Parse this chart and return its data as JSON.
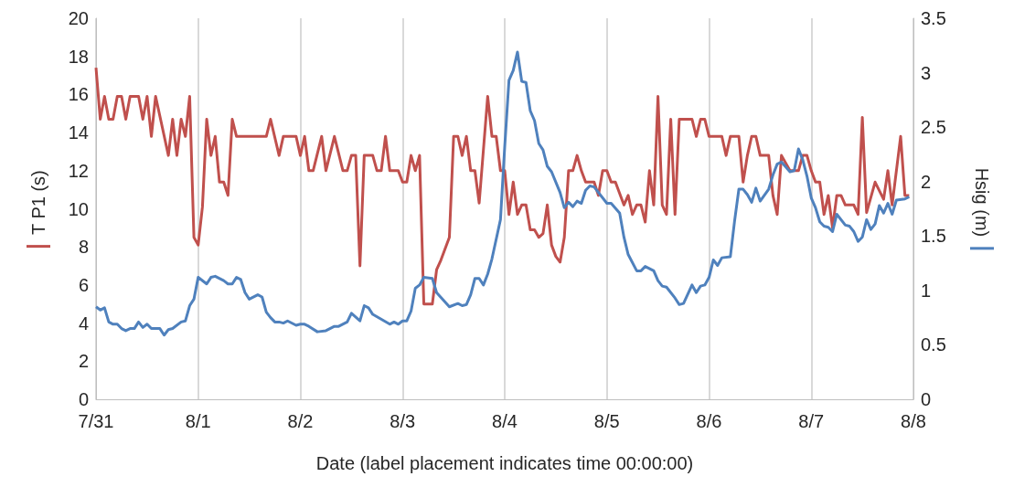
{
  "chart_data": {
    "type": "line",
    "xlabel": "Date (label placement indicates time 00:00:00)",
    "ylabel": "T P1 (s)",
    "y2label": "Hsig (m)",
    "xlim": [
      "--07-31",
      "--08-08"
    ],
    "xticks": [
      {
        "value": "--07-31",
        "label": "7/31"
      },
      {
        "value": "--08-01",
        "label": "8/1"
      },
      {
        "value": "--08-02",
        "label": "8/2"
      },
      {
        "value": "--08-03",
        "label": "8/3"
      },
      {
        "value": "--08-04",
        "label": "8/4"
      },
      {
        "value": "--08-05",
        "label": "8/5"
      },
      {
        "value": "--08-06",
        "label": "8/6"
      },
      {
        "value": "--08-07",
        "label": "8/7"
      },
      {
        "value": "--08-08",
        "label": "8/8"
      }
    ],
    "ylim": [
      0,
      20
    ],
    "yticks": [
      0,
      2,
      4,
      6,
      8,
      10,
      12,
      14,
      16,
      18,
      20
    ],
    "y2lim": [
      0,
      3.5
    ],
    "y2ticks": [
      0,
      0.5,
      1,
      1.5,
      2,
      2.5,
      3,
      3.5
    ],
    "grid": "x",
    "marker": "none",
    "line_style": "solid",
    "series": [
      {
        "color": "#c0504d",
        "x": [
          "--07-31T00:00",
          "--07-31T01:00",
          "--07-31T02:00",
          "--07-31T03:00",
          "--07-31T04:00",
          "--07-31T05:00",
          "--07-31T06:00",
          "--07-31T07:00",
          "--07-31T08:00",
          "--07-31T10:00",
          "--07-31T11:00",
          "--07-31T12:00",
          "--07-31T13:00",
          "--07-31T14:00",
          "--07-31T17:00",
          "--07-31T18:00",
          "--07-31T19:00",
          "--07-31T20:00",
          "--07-31T21:00",
          "--07-31T22:00",
          "--07-31T23:00",
          "--08-01T00:00",
          "--08-01T01:00",
          "--08-01T02:00",
          "--08-01T03:00",
          "--08-01T04:00",
          "--08-01T05:00",
          "--08-01T06:00",
          "--08-01T07:00",
          "--08-01T08:00",
          "--08-01T09:00",
          "--08-01T16:00",
          "--08-01T17:00",
          "--08-01T19:00",
          "--08-01T20:00",
          "--08-01T23:00",
          "--08-02T00:00",
          "--08-02T01:00",
          "--08-02T02:00",
          "--08-02T03:00",
          "--08-02T05:00",
          "--08-02T06:00",
          "--08-02T08:00",
          "--08-02T10:00",
          "--08-02T11:00",
          "--08-02T12:00",
          "--08-02T13:00",
          "--08-02T14:00",
          "--08-02T15:00",
          "--08-02T17:00",
          "--08-02T18:00",
          "--08-02T19:00",
          "--08-02T20:00",
          "--08-02T21:00",
          "--08-02T23:00",
          "--08-03T00:00",
          "--08-03T01:00",
          "--08-03T02:00",
          "--08-03T03:00",
          "--08-03T04:00",
          "--08-03T05:00",
          "--08-03T07:00",
          "--08-03T08:00",
          "--08-03T09:00",
          "--08-03T11:00",
          "--08-03T12:00",
          "--08-03T13:00",
          "--08-03T14:00",
          "--08-03T15:00",
          "--08-03T16:00",
          "--08-03T17:00",
          "--08-03T18:00",
          "--08-03T20:00",
          "--08-03T21:00",
          "--08-03T22:00",
          "--08-03T23:00",
          "--08-04T00:00",
          "--08-04T01:00",
          "--08-04T02:00",
          "--08-04T03:00",
          "--08-04T04:00",
          "--08-04T05:00",
          "--08-04T06:00",
          "--08-04T07:00",
          "--08-04T08:00",
          "--08-04T09:00",
          "--08-04T10:00",
          "--08-04T11:00",
          "--08-04T12:00",
          "--08-04T13:00",
          "--08-04T14:00",
          "--08-04T15:00",
          "--08-04T16:00",
          "--08-04T17:00",
          "--08-04T18:00",
          "--08-04T19:00",
          "--08-04T21:00",
          "--08-04T22:00",
          "--08-04T23:00",
          "--08-05T00:00",
          "--08-05T01:00",
          "--08-05T02:00",
          "--08-05T04:00",
          "--08-05T05:00",
          "--08-05T06:00",
          "--08-05T07:00",
          "--08-05T08:00",
          "--08-05T09:00",
          "--08-05T10:00",
          "--08-05T11:00",
          "--08-05T12:00",
          "--08-05T13:00",
          "--08-05T14:00",
          "--08-05T15:00",
          "--08-05T16:00",
          "--08-05T17:00",
          "--08-05T20:00",
          "--08-05T21:00",
          "--08-05T22:00",
          "--08-05T23:00",
          "--08-06T00:00",
          "--08-06T03:00",
          "--08-06T04:00",
          "--08-06T05:00",
          "--08-06T07:00",
          "--08-06T08:00",
          "--08-06T09:00",
          "--08-06T10:00",
          "--08-06T11:00",
          "--08-06T12:00",
          "--08-06T14:00",
          "--08-06T15:00",
          "--08-06T16:00",
          "--08-06T17:00",
          "--08-06T19:00",
          "--08-06T21:00",
          "--08-06T22:00",
          "--08-06T23:00",
          "--08-07T00:00",
          "--08-07T01:00",
          "--08-07T02:00",
          "--08-07T03:00",
          "--08-07T04:00",
          "--08-07T05:00",
          "--08-07T06:00",
          "--08-07T07:00",
          "--08-07T08:00",
          "--08-07T10:00",
          "--08-07T11:00",
          "--08-07T12:00",
          "--08-07T13:00",
          "--08-07T15:00",
          "--08-07T17:00",
          "--08-07T18:00",
          "--08-07T19:00",
          "--08-07T21:00",
          "--08-07T22:00",
          "--08-07T23:00"
        ],
        "values": [
          17.4,
          14.7,
          15.9,
          14.7,
          14.7,
          15.9,
          15.9,
          14.7,
          15.9,
          15.9,
          14.7,
          15.9,
          13.8,
          15.9,
          12.8,
          14.7,
          12.8,
          14.7,
          13.8,
          15.9,
          8.5,
          8.1,
          10.1,
          14.7,
          12.8,
          13.8,
          11.4,
          11.4,
          10.7,
          14.7,
          13.8,
          13.8,
          14.7,
          12.8,
          13.8,
          13.8,
          12.8,
          13.8,
          12,
          12,
          13.8,
          12,
          13.8,
          12,
          12,
          12.8,
          12.8,
          7,
          12.8,
          12.8,
          12,
          12,
          13.8,
          12,
          12,
          11.4,
          11.4,
          12.8,
          12,
          12.8,
          5,
          5,
          6.8,
          7.3,
          8.5,
          13.8,
          13.8,
          12.8,
          13.8,
          12,
          12,
          10.3,
          15.9,
          13.8,
          13.8,
          12,
          12,
          9.7,
          11.4,
          9.7,
          10.2,
          10.2,
          8.9,
          8.9,
          8.5,
          8.7,
          10.2,
          8.1,
          7.5,
          7.2,
          8.5,
          12,
          12,
          12.8,
          12,
          11.4,
          11.4,
          10.7,
          12,
          12,
          11.4,
          11.4,
          10.2,
          10.7,
          9.7,
          10.2,
          10.2,
          9.3,
          12,
          10.2,
          15.9,
          10.2,
          9.7,
          14.7,
          9.7,
          14.7,
          14.7,
          13.8,
          14.7,
          14.7,
          13.8,
          13.8,
          12.8,
          13.8,
          13.8,
          11.4,
          12.8,
          13.8,
          13.8,
          12.8,
          12.8,
          10.7,
          9.7,
          12.8,
          12,
          12,
          12.8,
          12.8,
          12,
          11.4,
          11.4,
          9.7,
          10.7,
          9,
          10.7,
          10.7,
          10.2,
          10.2,
          9.7,
          14.8,
          9.8,
          11.4,
          10.5,
          12,
          10.2,
          13.8,
          10.7,
          10.7
        ]
      },
      {
        "color": "#4f81bd",
        "axis": "y2",
        "x": [
          "--07-31T00:00",
          "--07-31T01:00",
          "--07-31T02:00",
          "--07-31T03:00",
          "--07-31T04:00",
          "--07-31T05:00",
          "--07-31T06:00",
          "--07-31T07:00",
          "--07-31T08:00",
          "--07-31T09:00",
          "--07-31T10:00",
          "--07-31T11:00",
          "--07-31T12:00",
          "--07-31T13:00",
          "--07-31T15:00",
          "--07-31T16:00",
          "--07-31T17:00",
          "--07-31T18:00",
          "--07-31T20:00",
          "--07-31T21:00",
          "--07-31T22:00",
          "--07-31T23:00",
          "--08-01T00:00",
          "--08-01T02:00",
          "--08-01T03:00",
          "--08-01T04:00",
          "--08-01T06:00",
          "--08-01T07:00",
          "--08-01T08:00",
          "--08-01T09:00",
          "--08-01T10:00",
          "--08-01T11:00",
          "--08-01T12:00",
          "--08-01T14:00",
          "--08-01T15:00",
          "--08-01T16:00",
          "--08-01T17:00",
          "--08-01T18:00",
          "--08-01T19:00",
          "--08-01T20:00",
          "--08-01T21:00",
          "--08-01T23:00",
          "--08-02T00:00",
          "--08-02T01:00",
          "--08-02T02:00",
          "--08-02T04:00",
          "--08-02T06:00",
          "--08-02T08:00",
          "--08-02T09:00",
          "--08-02T11:00",
          "--08-02T12:00",
          "--08-02T14:00",
          "--08-02T15:00",
          "--08-02T16:00",
          "--08-02T17:00",
          "--08-02T21:00",
          "--08-02T22:00",
          "--08-02T23:00",
          "--08-03T00:00",
          "--08-03T01:00",
          "--08-03T02:00",
          "--08-03T03:00",
          "--08-03T04:00",
          "--08-03T05:00",
          "--08-03T07:00",
          "--08-03T08:00",
          "--08-03T11:00",
          "--08-03T13:00",
          "--08-03T14:00",
          "--08-03T15:00",
          "--08-03T16:00",
          "--08-03T17:00",
          "--08-03T18:00",
          "--08-03T19:00",
          "--08-03T20:00",
          "--08-03T21:00",
          "--08-03T23:00",
          "--08-04T00:00",
          "--08-04T01:00",
          "--08-04T02:00",
          "--08-04T03:00",
          "--08-04T04:00",
          "--08-04T05:00",
          "--08-04T06:00",
          "--08-04T07:00",
          "--08-04T08:00",
          "--08-04T09:00",
          "--08-04T10:00",
          "--08-04T11:00",
          "--08-04T13:00",
          "--08-04T14:00",
          "--08-04T15:00",
          "--08-04T16:00",
          "--08-04T17:00",
          "--08-04T18:00",
          "--08-04T19:00",
          "--08-04T20:00",
          "--08-04T21:00",
          "--08-05T00:00",
          "--08-05T01:00",
          "--08-05T03:00",
          "--08-05T04:00",
          "--08-05T05:00",
          "--08-05T07:00",
          "--08-05T08:00",
          "--08-05T09:00",
          "--08-05T11:00",
          "--08-05T12:00",
          "--08-05T13:00",
          "--08-05T14:00",
          "--08-05T16:00",
          "--08-05T17:00",
          "--08-05T18:00",
          "--08-05T20:00",
          "--08-05T21:00",
          "--08-05T22:00",
          "--08-05T23:00",
          "--08-06T00:00",
          "--08-06T01:00",
          "--08-06T02:00",
          "--08-06T03:00",
          "--08-06T05:00",
          "--08-06T06:00",
          "--08-06T07:00",
          "--08-06T08:00",
          "--08-06T09:00",
          "--08-06T10:00",
          "--08-06T11:00",
          "--08-06T12:00",
          "--08-06T14:00",
          "--08-06T15:00",
          "--08-06T16:00",
          "--08-06T17:00",
          "--08-06T19:00",
          "--08-06T20:00",
          "--08-06T21:00",
          "--08-06T22:00",
          "--08-06T23:00",
          "--08-07T00:00",
          "--08-07T01:00",
          "--08-07T02:00",
          "--08-07T03:00",
          "--08-07T04:00",
          "--08-07T05:00",
          "--08-07T06:00",
          "--08-07T08:00",
          "--08-07T09:00",
          "--08-07T10:00",
          "--08-07T11:00",
          "--08-07T12:00",
          "--08-07T13:00",
          "--08-07T14:00",
          "--08-07T15:00",
          "--08-07T16:00",
          "--08-07T17:00",
          "--08-07T18:00",
          "--08-07T19:00",
          "--08-07T20:00",
          "--08-07T22:00",
          "--08-07T23:00"
        ],
        "values": [
          0.85,
          0.82,
          0.84,
          0.71,
          0.69,
          0.69,
          0.65,
          0.63,
          0.65,
          0.65,
          0.71,
          0.66,
          0.69,
          0.65,
          0.65,
          0.59,
          0.64,
          0.65,
          0.71,
          0.72,
          0.86,
          0.92,
          1.12,
          1.06,
          1.12,
          1.13,
          1.09,
          1.06,
          1.06,
          1.12,
          1.1,
          0.98,
          0.92,
          0.96,
          0.94,
          0.8,
          0.75,
          0.71,
          0.71,
          0.7,
          0.72,
          0.68,
          0.69,
          0.69,
          0.67,
          0.62,
          0.63,
          0.67,
          0.67,
          0.71,
          0.79,
          0.72,
          0.86,
          0.84,
          0.78,
          0.69,
          0.71,
          0.69,
          0.72,
          0.72,
          0.81,
          1.02,
          1.05,
          1.12,
          1.11,
          0.98,
          0.85,
          0.88,
          0.86,
          0.87,
          0.96,
          1.11,
          1.11,
          1.05,
          1.15,
          1.29,
          1.65,
          2.32,
          2.93,
          3.02,
          3.19,
          2.92,
          2.91,
          2.65,
          2.56,
          2.35,
          2.29,
          2.14,
          2.09,
          1.9,
          1.76,
          1.81,
          1.77,
          1.82,
          1.8,
          1.92,
          1.96,
          1.95,
          1.8,
          1.8,
          1.71,
          1.49,
          1.33,
          1.18,
          1.18,
          1.22,
          1.18,
          1.09,
          1.04,
          1.03,
          0.93,
          0.87,
          0.88,
          1.05,
          0.98,
          1.04,
          1.05,
          1.12,
          1.28,
          1.23,
          1.3,
          1.31,
          1.64,
          1.93,
          1.93,
          1.88,
          1.81,
          1.94,
          1.82,
          1.93,
          2.06,
          2.16,
          2.18,
          2.09,
          2.1,
          2.3,
          2.2,
          2.05,
          1.85,
          1.76,
          1.63,
          1.59,
          1.58,
          1.54,
          1.7,
          1.6,
          1.59,
          1.54,
          1.45,
          1.49,
          1.65,
          1.56,
          1.61,
          1.78,
          1.71,
          1.8,
          1.7,
          1.83,
          1.84,
          1.86
        ]
      }
    ]
  }
}
